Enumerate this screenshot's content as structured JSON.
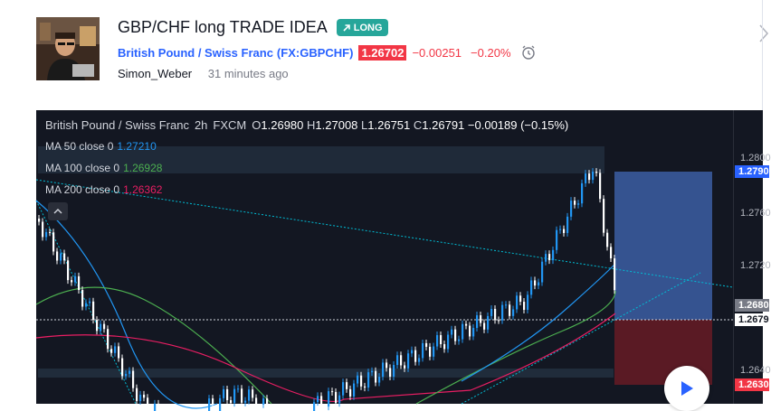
{
  "idea": {
    "title": "GBP/CHF long TRADE IDEA",
    "badge": "LONG",
    "symbol_name": "British Pound / Swiss Franc",
    "ticker_open": "(",
    "ticker": "FX:GBPCHF",
    "ticker_close": ")",
    "price": "1.26702",
    "change": "−0.00251",
    "change_pct": "−0.20%",
    "author": "Simon_Weber",
    "posted": "31 minutes ago"
  },
  "chart": {
    "legend": {
      "symbol": "British Pound / Swiss Franc",
      "interval": "2h",
      "exchange": "FXCM",
      "o_label": "O",
      "o": "1.26980",
      "h_label": "H",
      "h": "1.27008",
      "l_label": "L",
      "l": "1.26751",
      "c_label": "C",
      "c": "1.26791",
      "change": "−0.00189 (−0.15%)"
    },
    "indicators": [
      {
        "label": "MA 50 close 0",
        "value": "1.27210",
        "color": "#2196f3"
      },
      {
        "label": "MA 100 close 0",
        "value": "1.26928",
        "color": "#4caf50"
      },
      {
        "label": "MA 200 close 0",
        "value": "1.26362",
        "color": "#e91e63"
      }
    ],
    "axis": {
      "ticks": [
        "1.2800",
        "1.2760",
        "1.2720",
        "1.2640"
      ],
      "tag_blue": "1.2790",
      "tag_grey": "1.2680",
      "tag_white": "1.2679",
      "tag_red": "1.2630"
    },
    "colors": {
      "up": "#2196f3",
      "down": "#ffffff",
      "target": "#2962ff",
      "stop": "#8b1a2b"
    }
  }
}
